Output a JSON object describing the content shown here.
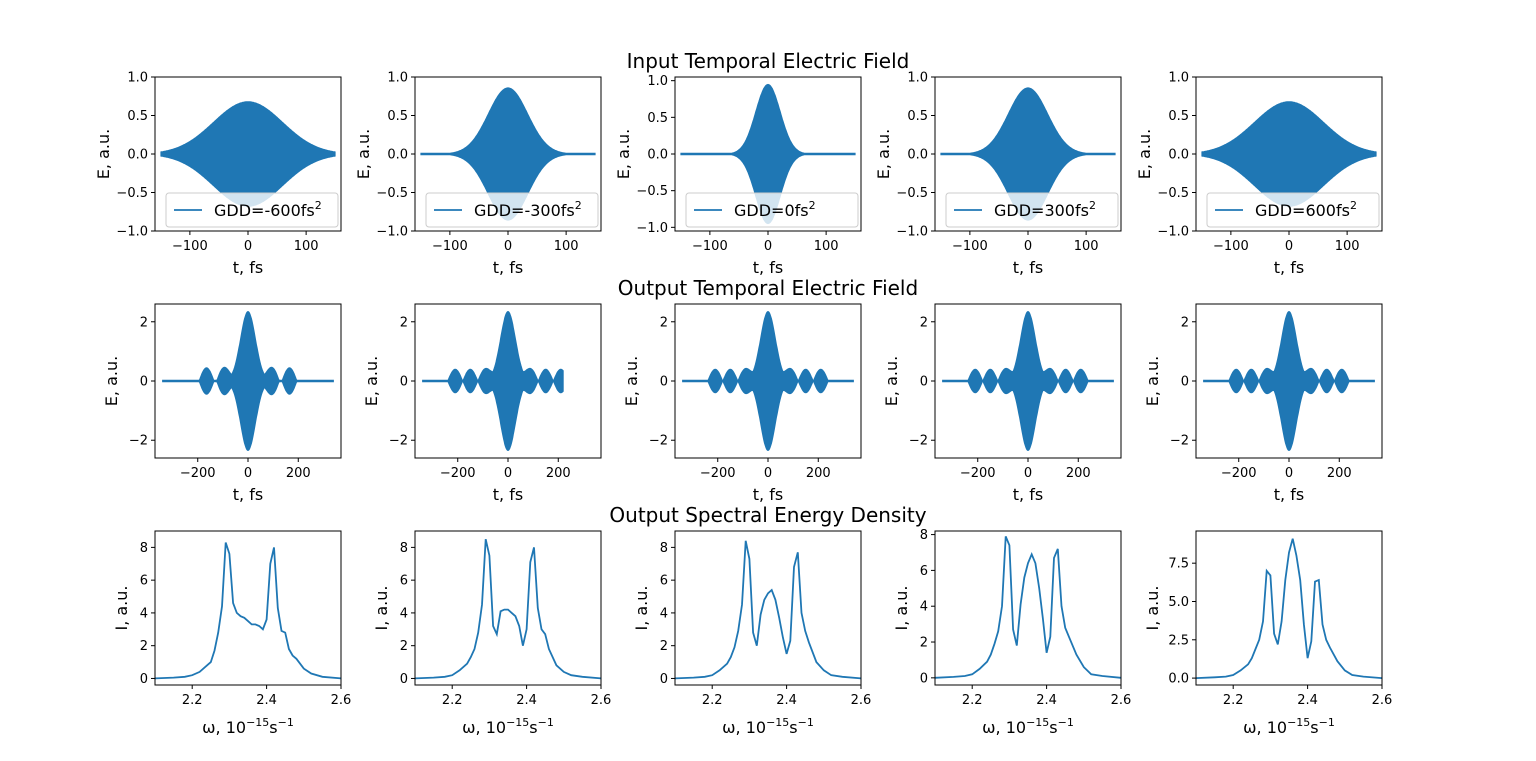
{
  "figure": {
    "row_titles": [
      "Input Temporal Electric Field",
      "Output Temporal Electric Field",
      "Output Spectral Energy Density"
    ],
    "line_color": "#1f77b4",
    "legend_labels": [
      "GDD=-600fs",
      "GDD=-300fs",
      "GDD=0fs",
      "GDD=300fs",
      "GDD=600fs"
    ],
    "legend_superscript": "2"
  },
  "chart_data": [
    {
      "type": "line",
      "row": 0,
      "col": 0,
      "ylabel": "E, a.u.",
      "xlabel": "t, fs",
      "xlim": [
        -160,
        160
      ],
      "ylim": [
        -1.0,
        1.0
      ],
      "xticks": [
        -100,
        0,
        100
      ],
      "xticklabels": [
        "−100",
        "0",
        "100"
      ],
      "yticks": [
        -1.0,
        -0.5,
        0.0,
        0.5,
        1.0
      ],
      "yticklabels": [
        "−1.0",
        "−0.5",
        "0.0",
        "0.5",
        "1.0"
      ],
      "series": [
        {
          "name": "GDD=-600fs²",
          "envelope_peak": 0.68,
          "envelope_fwhm": 140,
          "x_range": [
            -150,
            150
          ]
        }
      ]
    },
    {
      "type": "line",
      "row": 0,
      "col": 1,
      "ylabel": "E, a.u.",
      "xlabel": "t, fs",
      "xlim": [
        -160,
        160
      ],
      "ylim": [
        -1.0,
        1.0
      ],
      "xticks": [
        -100,
        0,
        100
      ],
      "xticklabels": [
        "−100",
        "0",
        "100"
      ],
      "yticks": [
        -1.0,
        -0.5,
        0.0,
        0.5,
        1.0
      ],
      "yticklabels": [
        "−1.0",
        "−0.5",
        "0.0",
        "0.5",
        "1.0"
      ],
      "series": [
        {
          "name": "GDD=-300fs²",
          "envelope_peak": 0.86,
          "envelope_fwhm": 80,
          "x_range": [
            -150,
            150
          ]
        }
      ]
    },
    {
      "type": "line",
      "row": 0,
      "col": 2,
      "ylabel": "E, a.u.",
      "xlabel": "t, fs",
      "xlim": [
        -160,
        160
      ],
      "ylim": [
        -1.05,
        1.05
      ],
      "xticks": [
        -100,
        0,
        100
      ],
      "xticklabels": [
        "−100",
        "0",
        "100"
      ],
      "yticks": [
        -1.0,
        -0.5,
        0.0,
        0.5,
        1.0
      ],
      "yticklabels": [
        "−1.0",
        "−0.5",
        "0.0",
        "0.5",
        "1.0"
      ],
      "series": [
        {
          "name": "GDD=0fs²",
          "envelope_peak": 0.95,
          "envelope_fwhm": 50,
          "x_range": [
            -150,
            150
          ]
        }
      ]
    },
    {
      "type": "line",
      "row": 0,
      "col": 3,
      "ylabel": "E, a.u.",
      "xlabel": "t, fs",
      "xlim": [
        -160,
        160
      ],
      "ylim": [
        -1.0,
        1.0
      ],
      "xticks": [
        -100,
        0,
        100
      ],
      "xticklabels": [
        "−100",
        "0",
        "100"
      ],
      "yticks": [
        -1.0,
        -0.5,
        0.0,
        0.5,
        1.0
      ],
      "yticklabels": [
        "−1.0",
        "−0.5",
        "0.0",
        "0.5",
        "1.0"
      ],
      "series": [
        {
          "name": "GDD=300fs²",
          "envelope_peak": 0.86,
          "envelope_fwhm": 80,
          "x_range": [
            -150,
            150
          ]
        }
      ]
    },
    {
      "type": "line",
      "row": 0,
      "col": 4,
      "ylabel": "E, a.u.",
      "xlabel": "t, fs",
      "xlim": [
        -160,
        160
      ],
      "ylim": [
        -1.0,
        1.0
      ],
      "xticks": [
        -100,
        0,
        100
      ],
      "xticklabels": [
        "−100",
        "0",
        "100"
      ],
      "yticks": [
        -1.0,
        -0.5,
        0.0,
        0.5,
        1.0
      ],
      "yticklabels": [
        "−1.0",
        "−0.5",
        "0.0",
        "0.5",
        "1.0"
      ],
      "series": [
        {
          "name": "GDD=600fs²",
          "envelope_peak": 0.68,
          "envelope_fwhm": 140,
          "x_range": [
            -150,
            150
          ]
        }
      ]
    },
    {
      "type": "line",
      "row": 1,
      "col": 0,
      "ylabel": "E, a.u.",
      "xlabel": "t, fs",
      "xlim": [
        -370,
        370
      ],
      "ylim": [
        -2.6,
        2.6
      ],
      "xticks": [
        -200,
        0,
        200
      ],
      "xticklabels": [
        "−200",
        "0",
        "200"
      ],
      "yticks": [
        -2,
        0,
        2
      ],
      "yticklabels": [
        "−2",
        "0",
        "2"
      ],
      "series": [
        {
          "envelope_peak": 2.35,
          "x_range": [
            -340,
            340
          ],
          "side_lobes": [
            -165,
            -95,
            95,
            165
          ],
          "side_lobe_amp": 0.45
        }
      ]
    },
    {
      "type": "line",
      "row": 1,
      "col": 1,
      "ylabel": "E, a.u.",
      "xlabel": "t, fs",
      "xlim": [
        -370,
        370
      ],
      "ylim": [
        -2.6,
        2.6
      ],
      "xticks": [
        -200,
        0,
        200
      ],
      "xticklabels": [
        "−200",
        "0",
        "200"
      ],
      "yticks": [
        -2,
        0,
        2
      ],
      "yticklabels": [
        "−2",
        "0",
        "2"
      ],
      "series": [
        {
          "envelope_peak": 2.35,
          "x_range": [
            -340,
            220
          ],
          "side_lobes": [
            -210,
            -150,
            -90,
            90,
            150,
            210
          ],
          "side_lobe_amp": 0.4
        }
      ]
    },
    {
      "type": "line",
      "row": 1,
      "col": 2,
      "ylabel": "E, a.u.",
      "xlabel": "t, fs",
      "xlim": [
        -370,
        370
      ],
      "ylim": [
        -2.6,
        2.6
      ],
      "xticks": [
        -200,
        0,
        200
      ],
      "xticklabels": [
        "−200",
        "0",
        "200"
      ],
      "yticks": [
        -2,
        0,
        2
      ],
      "yticklabels": [
        "−2",
        "0",
        "2"
      ],
      "series": [
        {
          "envelope_peak": 2.35,
          "x_range": [
            -340,
            340
          ],
          "side_lobes": [
            -210,
            -150,
            -90,
            90,
            150,
            210
          ],
          "side_lobe_amp": 0.4
        }
      ]
    },
    {
      "type": "line",
      "row": 1,
      "col": 3,
      "ylabel": "E, a.u.",
      "xlabel": "t, fs",
      "xlim": [
        -370,
        370
      ],
      "ylim": [
        -2.6,
        2.6
      ],
      "xticks": [
        -200,
        0,
        200
      ],
      "xticklabels": [
        "−200",
        "0",
        "200"
      ],
      "yticks": [
        -2,
        0,
        2
      ],
      "yticklabels": [
        "−2",
        "0",
        "2"
      ],
      "series": [
        {
          "envelope_peak": 2.35,
          "x_range": [
            -340,
            340
          ],
          "side_lobes": [
            -210,
            -150,
            -90,
            90,
            150,
            210
          ],
          "side_lobe_amp": 0.4
        }
      ]
    },
    {
      "type": "line",
      "row": 1,
      "col": 4,
      "ylabel": "E, a.u.",
      "xlabel": "t, fs",
      "xlim": [
        -370,
        370
      ],
      "ylim": [
        -2.6,
        2.6
      ],
      "xticks": [
        -200,
        0,
        200
      ],
      "xticklabels": [
        "−200",
        "0",
        "200"
      ],
      "yticks": [
        -2,
        0,
        2
      ],
      "yticklabels": [
        "−2",
        "0",
        "2"
      ],
      "series": [
        {
          "envelope_peak": 2.35,
          "x_range": [
            -340,
            340
          ],
          "side_lobes": [
            -210,
            -150,
            -90,
            90,
            150,
            210
          ],
          "side_lobe_amp": 0.4
        }
      ]
    },
    {
      "type": "line",
      "row": 2,
      "col": 0,
      "ylabel": "I, a.u.",
      "xlabel": "ω, 10",
      "xlim": [
        2.1,
        2.6
      ],
      "ylim": [
        -0.4,
        9.0
      ],
      "xticks": [
        2.2,
        2.4,
        2.6
      ],
      "xticklabels": [
        "2.2",
        "2.4",
        "2.6"
      ],
      "yticks": [
        0,
        2,
        4,
        6,
        8
      ],
      "yticklabels": [
        "0",
        "2",
        "4",
        "6",
        "8"
      ],
      "series": [
        {
          "x": [
            2.1,
            2.15,
            2.18,
            2.2,
            2.22,
            2.24,
            2.25,
            2.26,
            2.27,
            2.28,
            2.29,
            2.3,
            2.31,
            2.32,
            2.33,
            2.34,
            2.35,
            2.36,
            2.37,
            2.38,
            2.39,
            2.4,
            2.41,
            2.42,
            2.43,
            2.44,
            2.45,
            2.46,
            2.47,
            2.48,
            2.5,
            2.52,
            2.55,
            2.6
          ],
          "y": [
            0.0,
            0.05,
            0.1,
            0.2,
            0.4,
            0.8,
            1.0,
            1.7,
            2.8,
            4.4,
            8.3,
            7.6,
            4.6,
            4.0,
            3.8,
            3.7,
            3.5,
            3.3,
            3.3,
            3.2,
            3.0,
            3.6,
            7.0,
            8.0,
            4.3,
            2.9,
            2.8,
            1.8,
            1.4,
            1.2,
            0.6,
            0.3,
            0.1,
            0.0
          ]
        }
      ]
    },
    {
      "type": "line",
      "row": 2,
      "col": 1,
      "ylabel": "I, a.u.",
      "xlabel": "ω, 10",
      "xlim": [
        2.1,
        2.6
      ],
      "ylim": [
        -0.4,
        9.0
      ],
      "xticks": [
        2.2,
        2.4,
        2.6
      ],
      "xticklabels": [
        "2.2",
        "2.4",
        "2.6"
      ],
      "yticks": [
        0,
        2,
        4,
        6,
        8
      ],
      "yticklabels": [
        "0",
        "2",
        "4",
        "6",
        "8"
      ],
      "series": [
        {
          "x": [
            2.1,
            2.15,
            2.18,
            2.2,
            2.22,
            2.24,
            2.25,
            2.26,
            2.27,
            2.28,
            2.29,
            2.3,
            2.31,
            2.32,
            2.33,
            2.34,
            2.35,
            2.36,
            2.37,
            2.38,
            2.39,
            2.4,
            2.41,
            2.42,
            2.43,
            2.44,
            2.45,
            2.46,
            2.48,
            2.5,
            2.52,
            2.55,
            2.6
          ],
          "y": [
            0.0,
            0.05,
            0.1,
            0.2,
            0.5,
            0.9,
            1.3,
            1.8,
            2.8,
            4.5,
            8.5,
            7.5,
            3.2,
            2.7,
            4.1,
            4.2,
            4.2,
            4.0,
            3.8,
            3.2,
            2.0,
            3.0,
            7.1,
            8.0,
            4.3,
            3.0,
            2.7,
            1.8,
            0.8,
            0.4,
            0.2,
            0.1,
            0.0
          ]
        }
      ]
    },
    {
      "type": "line",
      "row": 2,
      "col": 2,
      "ylabel": "I, a.u.",
      "xlabel": "ω, 10",
      "xlim": [
        2.1,
        2.6
      ],
      "ylim": [
        -0.4,
        9.0
      ],
      "xticks": [
        2.2,
        2.4,
        2.6
      ],
      "xticklabels": [
        "2.2",
        "2.4",
        "2.6"
      ],
      "yticks": [
        0,
        2,
        4,
        6,
        8
      ],
      "yticklabels": [
        "0",
        "2",
        "4",
        "6",
        "8"
      ],
      "series": [
        {
          "x": [
            2.1,
            2.15,
            2.18,
            2.2,
            2.22,
            2.24,
            2.25,
            2.26,
            2.27,
            2.28,
            2.29,
            2.3,
            2.31,
            2.32,
            2.33,
            2.34,
            2.35,
            2.36,
            2.37,
            2.38,
            2.39,
            2.4,
            2.41,
            2.42,
            2.43,
            2.44,
            2.45,
            2.46,
            2.48,
            2.5,
            2.52,
            2.55,
            2.6
          ],
          "y": [
            0.0,
            0.05,
            0.1,
            0.2,
            0.5,
            0.9,
            1.3,
            1.9,
            2.9,
            4.5,
            8.4,
            7.3,
            2.8,
            2.0,
            3.9,
            4.8,
            5.2,
            5.4,
            4.8,
            3.7,
            2.5,
            1.5,
            2.3,
            6.8,
            7.7,
            4.0,
            2.9,
            2.2,
            1.0,
            0.5,
            0.2,
            0.1,
            0.0
          ]
        }
      ]
    },
    {
      "type": "line",
      "row": 2,
      "col": 3,
      "ylabel": "I, a.u.",
      "xlabel": "ω, 10",
      "xlim": [
        2.1,
        2.6
      ],
      "ylim": [
        -0.4,
        8.2
      ],
      "xticks": [
        2.2,
        2.4,
        2.6
      ],
      "xticklabels": [
        "2.2",
        "2.4",
        "2.6"
      ],
      "yticks": [
        0,
        2,
        4,
        6,
        8
      ],
      "yticklabels": [
        "0",
        "2",
        "4",
        "6",
        "8"
      ],
      "series": [
        {
          "x": [
            2.1,
            2.15,
            2.18,
            2.2,
            2.22,
            2.24,
            2.25,
            2.26,
            2.27,
            2.28,
            2.29,
            2.3,
            2.31,
            2.32,
            2.33,
            2.34,
            2.35,
            2.36,
            2.37,
            2.38,
            2.39,
            2.4,
            2.41,
            2.42,
            2.43,
            2.44,
            2.45,
            2.46,
            2.48,
            2.5,
            2.52,
            2.55,
            2.6
          ],
          "y": [
            0.0,
            0.05,
            0.1,
            0.2,
            0.5,
            0.9,
            1.3,
            1.9,
            2.6,
            4.0,
            7.9,
            7.4,
            2.7,
            1.8,
            4.1,
            5.6,
            6.4,
            6.9,
            6.4,
            5.0,
            3.3,
            1.4,
            2.3,
            6.7,
            7.2,
            4.0,
            2.8,
            2.3,
            1.3,
            0.6,
            0.2,
            0.1,
            0.0
          ]
        }
      ]
    },
    {
      "type": "line",
      "row": 2,
      "col": 4,
      "ylabel": "I, a.u.",
      "xlabel": "ω, 10",
      "xlim": [
        2.1,
        2.6
      ],
      "ylim": [
        -0.45,
        9.6
      ],
      "xticks": [
        2.2,
        2.4,
        2.6
      ],
      "xticklabels": [
        "2.2",
        "2.4",
        "2.6"
      ],
      "yticks": [
        0.0,
        2.5,
        5.0,
        7.5
      ],
      "yticklabels": [
        "0.0",
        "2.5",
        "5.0",
        "7.5"
      ],
      "series": [
        {
          "x": [
            2.1,
            2.15,
            2.18,
            2.2,
            2.22,
            2.24,
            2.25,
            2.26,
            2.27,
            2.28,
            2.29,
            2.3,
            2.31,
            2.32,
            2.33,
            2.34,
            2.35,
            2.36,
            2.37,
            2.38,
            2.39,
            2.4,
            2.41,
            2.42,
            2.43,
            2.44,
            2.45,
            2.46,
            2.48,
            2.5,
            2.52,
            2.55,
            2.6
          ],
          "y": [
            0.0,
            0.05,
            0.1,
            0.2,
            0.5,
            0.9,
            1.3,
            1.9,
            2.5,
            3.7,
            7.0,
            6.7,
            2.9,
            2.2,
            3.7,
            6.4,
            8.2,
            9.1,
            8.0,
            6.4,
            3.5,
            1.3,
            2.4,
            6.3,
            6.4,
            3.5,
            2.5,
            2.0,
            1.1,
            0.5,
            0.2,
            0.1,
            0.0
          ]
        }
      ]
    }
  ]
}
